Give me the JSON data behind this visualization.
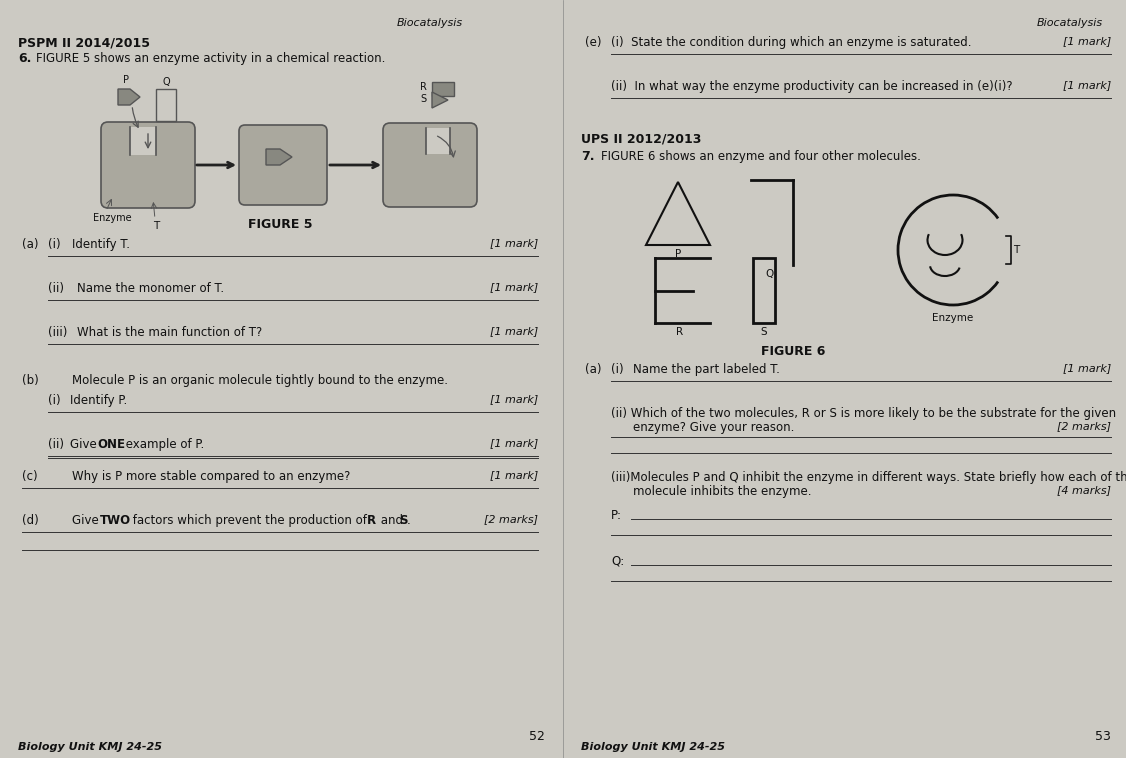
{
  "bg_color": "#cccac3",
  "text_color": "#111111",
  "page_width": 11.26,
  "page_height": 7.58,
  "dpi": 100,
  "left_header": "Biocatalysis",
  "right_header": "Biocatalysis",
  "left_section": "PSPM II 2014/2015",
  "left_q": "6.",
  "left_q_text": "FIGURE 5 shows an enzyme activity in a chemical reaction.",
  "figure5_caption": "FIGURE 5",
  "left_page_num": "52",
  "left_footer": "Biology Unit KMJ 24-25",
  "right_section2": "UPS II 2012/2013",
  "right_q": "7.",
  "right_q_text": "FIGURE 6 shows an enzyme and four other molecules.",
  "figure6_caption": "FIGURE 6",
  "right_page_num": "53",
  "right_footer": "Biology Unit KMJ 24-25"
}
